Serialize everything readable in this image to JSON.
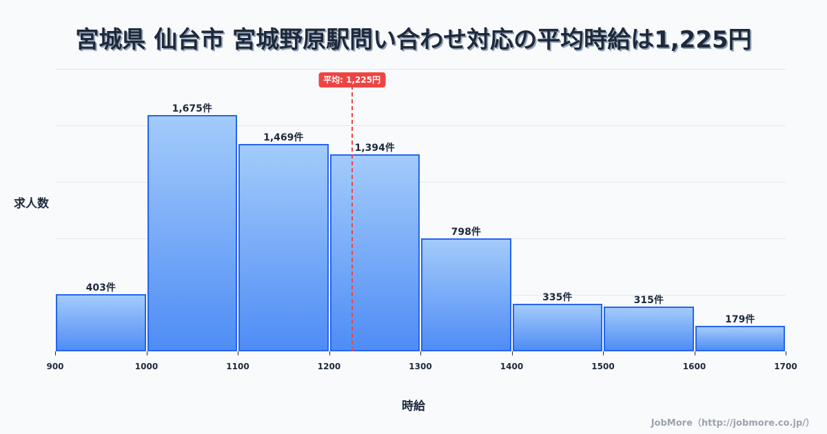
{
  "title": "宮城県 仙台市 宮城野原駅問い合わせ対応の平均時給は1,225円",
  "axes": {
    "ylabel": "求人数",
    "xlabel": "時給"
  },
  "average": {
    "value": 1225,
    "label": "平均: 1,225円",
    "color": "#ef4444"
  },
  "footer": "JobMore（http://jobmore.co.jp/）",
  "colors": {
    "bar_border": "#2563eb",
    "bar_top": "#a3cbfb",
    "bar_bottom": "#4f8df5",
    "grid": "#e2e8f0",
    "text": "#1e293b"
  },
  "bars": [
    {
      "range": "900-1000",
      "value": 403,
      "label": "403件"
    },
    {
      "range": "1000-1100",
      "value": 1675,
      "label": "1,675件"
    },
    {
      "range": "1100-1200",
      "value": 1469,
      "label": "1,469件"
    },
    {
      "range": "1200-1300",
      "value": 1394,
      "label": "1,394件"
    },
    {
      "range": "1300-1400",
      "value": 798,
      "label": "798件"
    },
    {
      "range": "1400-1500",
      "value": 335,
      "label": "335件"
    },
    {
      "range": "1500-1600",
      "value": 315,
      "label": "315件"
    },
    {
      "range": "1600-1700",
      "value": 179,
      "label": "179件"
    }
  ],
  "x_ticks": [
    "900",
    "1000",
    "1100",
    "1200",
    "1300",
    "1400",
    "1500",
    "1600",
    "1700"
  ],
  "chart_data": {
    "type": "bar",
    "title": "宮城県 仙台市 宮城野原駅問い合わせ対応の平均時給は1,225円",
    "xlabel": "時給",
    "ylabel": "求人数",
    "categories": [
      "900-1000",
      "1000-1100",
      "1100-1200",
      "1200-1300",
      "1300-1400",
      "1400-1500",
      "1500-1600",
      "1600-1700"
    ],
    "values": [
      403,
      1675,
      1469,
      1394,
      798,
      335,
      315,
      179
    ],
    "value_unit": "件",
    "x_ticks": [
      900,
      1000,
      1100,
      1200,
      1300,
      1400,
      1500,
      1600,
      1700
    ],
    "xlim": [
      900,
      1700
    ],
    "ylim": [
      0,
      2000
    ],
    "grid": true,
    "annotations": [
      {
        "type": "vline",
        "x": 1225,
        "style": "dashed",
        "color": "#ef4444",
        "label": "平均: 1,225円"
      }
    ],
    "legend": null
  }
}
